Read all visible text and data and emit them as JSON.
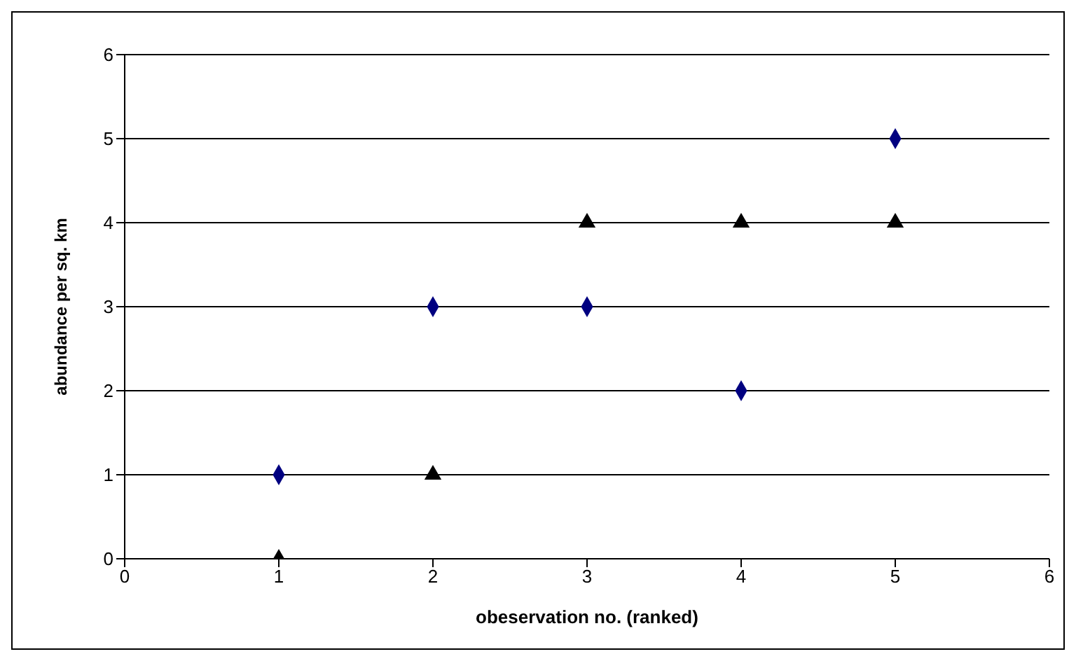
{
  "chart_data": {
    "type": "scatter",
    "xlabel": "obeservation no. (ranked)",
    "ylabel": "abundance per sq. km",
    "xlim": [
      0,
      6
    ],
    "xticks": [
      0,
      1,
      2,
      3,
      4,
      5,
      6
    ],
    "ylim": [
      0,
      6
    ],
    "yticks": [
      0,
      1,
      2,
      3,
      4,
      5,
      6
    ],
    "grid": "y",
    "legend": false,
    "series": [
      {
        "color": "#000080",
        "marker": "diamond",
        "x": [
          1,
          2,
          3,
          4,
          5
        ],
        "values": [
          1,
          3,
          3,
          2,
          5
        ]
      },
      {
        "color": "#000000",
        "marker": "triangle",
        "x": [
          1,
          2,
          3,
          4,
          5
        ],
        "values": [
          0,
          1,
          4,
          4,
          4
        ]
      }
    ]
  }
}
